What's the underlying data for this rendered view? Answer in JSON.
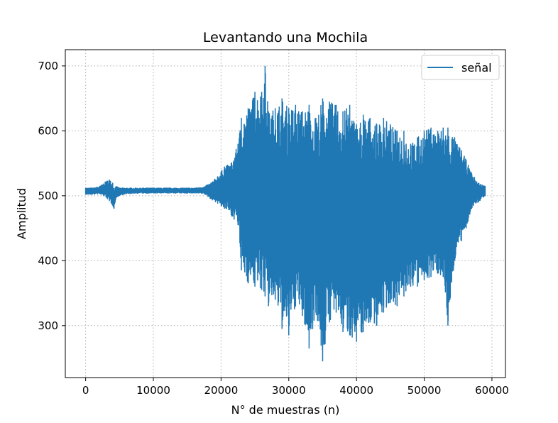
{
  "chart_data": {
    "type": "line",
    "title": "Levantando una Mochila",
    "xlabel": "N° de muestras (n)",
    "ylabel": "Amplitud",
    "xlim": [
      -3000,
      62000
    ],
    "ylim": [
      220,
      725
    ],
    "xticks": [
      0,
      10000,
      20000,
      30000,
      40000,
      50000,
      60000
    ],
    "yticks": [
      300,
      400,
      500,
      600,
      700
    ],
    "grid": true,
    "legend_position": "top-right",
    "color": "#1f77b4",
    "series": [
      {
        "name": "señal",
        "x": [
          0,
          1000,
          2000,
          3000,
          3500,
          4000,
          4200,
          4500,
          5000,
          6000,
          8000,
          10000,
          12000,
          14000,
          16000,
          17500,
          18500,
          19500,
          20500,
          21500,
          22500,
          23000,
          24000,
          25000,
          26000,
          26500,
          27000,
          28000,
          29000,
          30000,
          31000,
          32000,
          33000,
          34000,
          35000,
          36000,
          37000,
          38000,
          39000,
          40000,
          41000,
          42000,
          43000,
          44000,
          45000,
          46000,
          47000,
          48000,
          49000,
          50000,
          51000,
          52000,
          52800,
          53500,
          54500,
          55500,
          56200,
          57000,
          58000,
          59000
        ],
        "min": [
          502,
          502,
          503,
          498,
          492,
          485,
          480,
          497,
          500,
          503,
          504,
          504,
          504,
          504,
          504,
          503,
          495,
          488,
          480,
          470,
          455,
          385,
          365,
          360,
          355,
          345,
          330,
          340,
          295,
          285,
          330,
          315,
          265,
          320,
          245,
          305,
          320,
          290,
          285,
          275,
          290,
          305,
          300,
          320,
          335,
          330,
          345,
          360,
          360,
          370,
          375,
          380,
          375,
          300,
          400,
          430,
          450,
          480,
          490,
          500
        ],
        "max": [
          512,
          512,
          514,
          522,
          525,
          520,
          512,
          515,
          512,
          512,
          512,
          512,
          512,
          512,
          512,
          514,
          520,
          530,
          545,
          550,
          580,
          620,
          635,
          660,
          660,
          700,
          630,
          635,
          650,
          635,
          640,
          630,
          640,
          620,
          650,
          645,
          640,
          630,
          640,
          610,
          625,
          620,
          610,
          620,
          610,
          600,
          600,
          580,
          590,
          600,
          605,
          600,
          605,
          605,
          590,
          570,
          555,
          535,
          520,
          515
        ]
      }
    ]
  }
}
